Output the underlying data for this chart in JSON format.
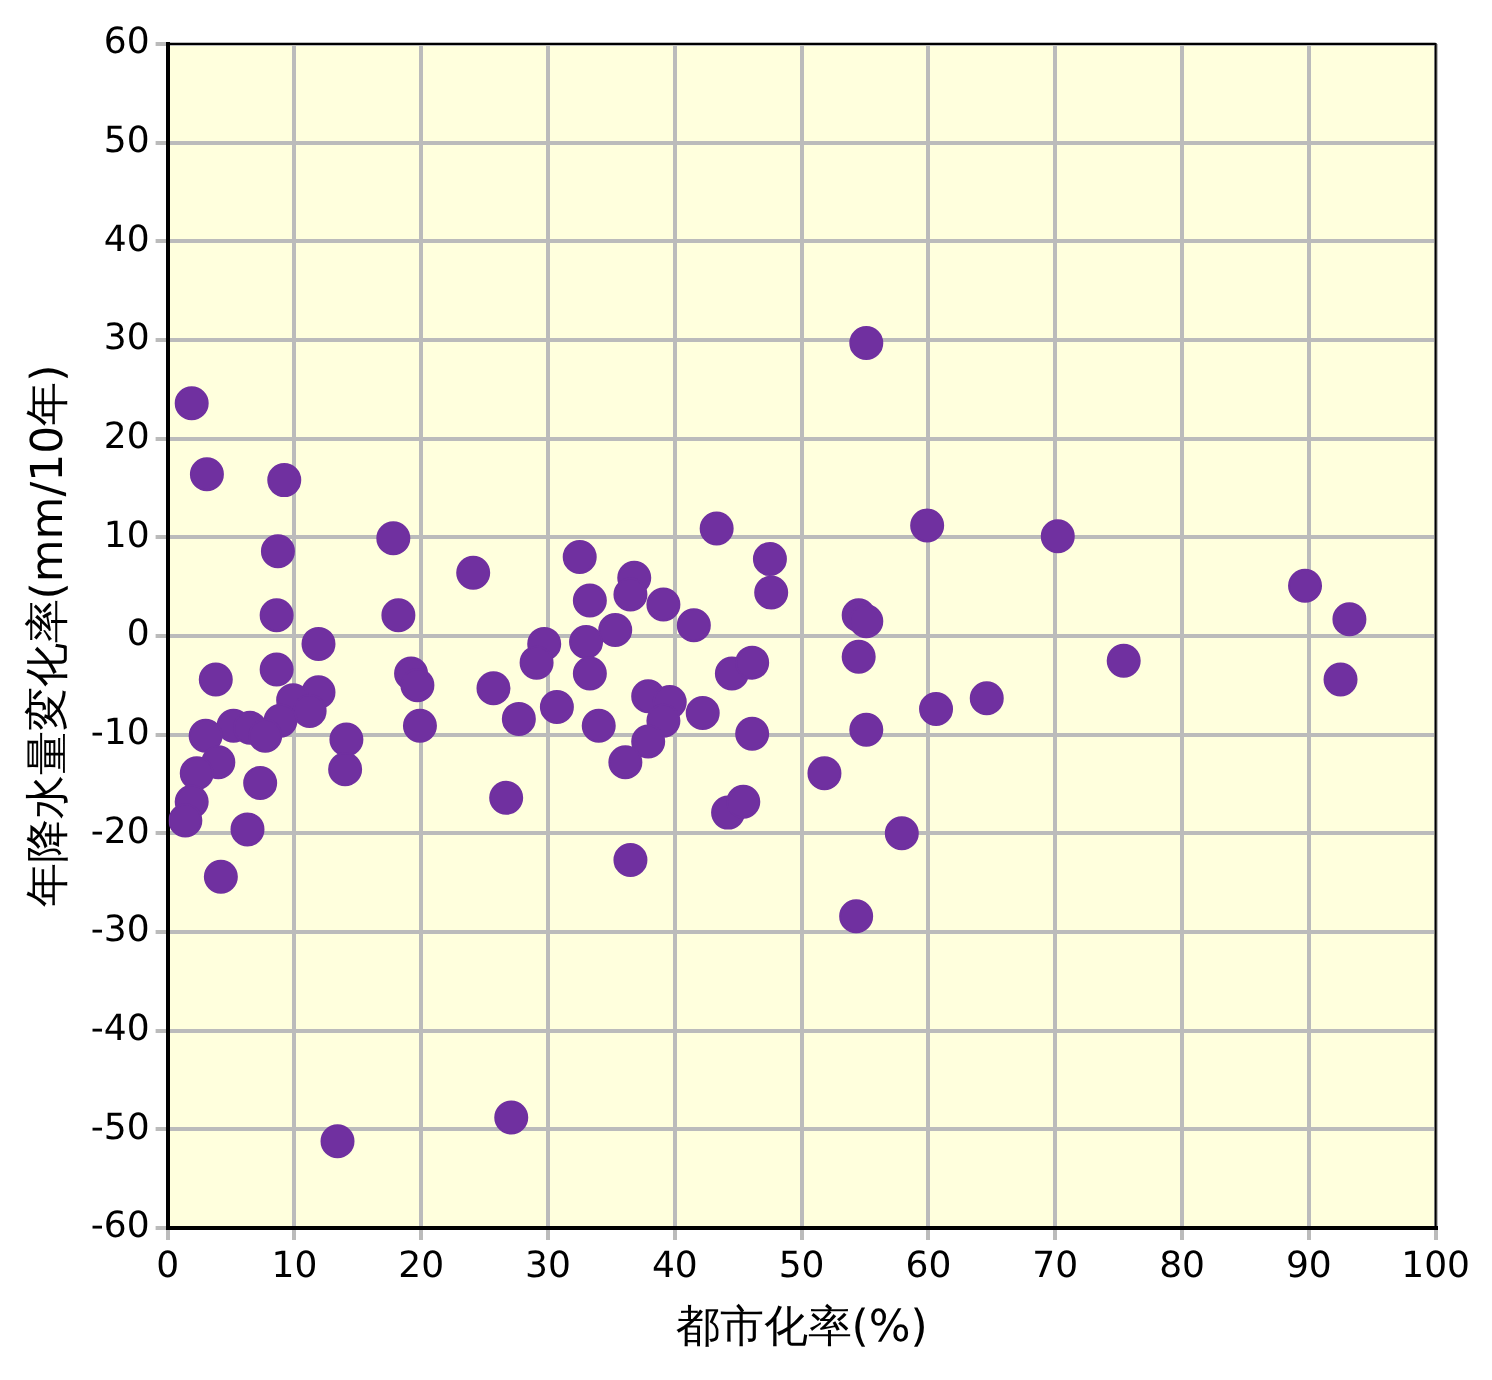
{
  "chart_data": {
    "type": "scatter",
    "xlabel": "都市化率(%)",
    "ylabel": "年降水量変化率(mm/10年)",
    "xlim": [
      0,
      100
    ],
    "ylim": [
      -60,
      60
    ],
    "xticks": [
      0,
      10,
      20,
      30,
      40,
      50,
      60,
      70,
      80,
      90,
      100
    ],
    "yticks": [
      -60,
      -50,
      -40,
      -30,
      -20,
      -10,
      0,
      10,
      20,
      30,
      40,
      50,
      60
    ],
    "grid": true,
    "legend": false,
    "marker": "circle",
    "series": [
      {
        "color": "#7030a0",
        "x": [
          1.9,
          3.1,
          9.2,
          8.7,
          8.6,
          17.8,
          24.1,
          18.2,
          11.9,
          3.8,
          8.6,
          19.2,
          19.7,
          11.9,
          9.9,
          11.2,
          8.9,
          5.2,
          6.5,
          3.0,
          7.7,
          14.1,
          19.9,
          4.0,
          2.3,
          7.3,
          14.0,
          1.9,
          1.4,
          6.3,
          4.2,
          13.4,
          27.1,
          55.1,
          43.3,
          32.5,
          47.5,
          36.8,
          36.5,
          47.6,
          33.3,
          39.1,
          41.5,
          35.3,
          29.7,
          29.1,
          33.0,
          33.3,
          25.7,
          27.7,
          30.7,
          34.0,
          37.9,
          39.6,
          42.2,
          44.5,
          46.1,
          39.1,
          37.9,
          36.1,
          46.1,
          51.8,
          26.7,
          44.2,
          45.4,
          36.5,
          54.3,
          54.5,
          55.1,
          54.5,
          55.1,
          57.9,
          59.9,
          70.2,
          75.4,
          60.6,
          64.6,
          89.7,
          93.2,
          92.5
        ],
        "values": [
          23.6,
          16.4,
          15.8,
          8.6,
          2.1,
          9.9,
          6.4,
          2.1,
          -0.8,
          -4.4,
          -3.4,
          -3.8,
          -5.0,
          -5.7,
          -6.5,
          -7.6,
          -8.6,
          -9.1,
          -9.3,
          -10.1,
          -10.1,
          -10.5,
          -9.1,
          -12.8,
          -13.9,
          -14.9,
          -13.5,
          -16.8,
          -18.7,
          -19.6,
          -24.4,
          -51.2,
          -48.8,
          29.7,
          10.9,
          8.0,
          7.8,
          5.9,
          4.2,
          4.4,
          3.6,
          3.2,
          1.1,
          0.6,
          -0.8,
          -2.7,
          -0.6,
          -3.8,
          -5.3,
          -8.4,
          -7.2,
          -9.1,
          -6.1,
          -6.7,
          -7.8,
          -3.8,
          -2.7,
          -8.6,
          -10.7,
          -12.8,
          -9.9,
          -13.9,
          -16.4,
          -17.9,
          -16.8,
          -22.7,
          -28.4,
          2.1,
          1.5,
          -2.1,
          -9.5,
          -20.0,
          11.2,
          10.1,
          -2.5,
          -7.4,
          -6.3,
          5.1,
          1.7,
          -4.4
        ]
      }
    ]
  }
}
